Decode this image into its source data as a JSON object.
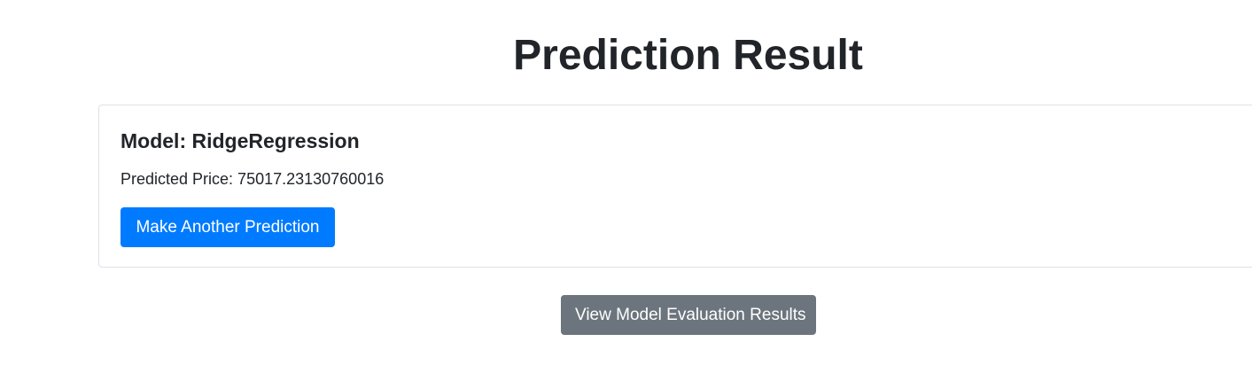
{
  "page": {
    "title": "Prediction Result"
  },
  "result": {
    "model_label": "Model: RidgeRegression",
    "predicted_price_label": "Predicted Price: 75017.23130760016",
    "another_prediction_label": "Make Another Prediction"
  },
  "footer": {
    "evaluation_button_label": "View Model Evaluation Results"
  },
  "colors": {
    "primary": "#007bff",
    "secondary": "#6c757d",
    "text": "#212529",
    "border": "#dee2e6"
  }
}
